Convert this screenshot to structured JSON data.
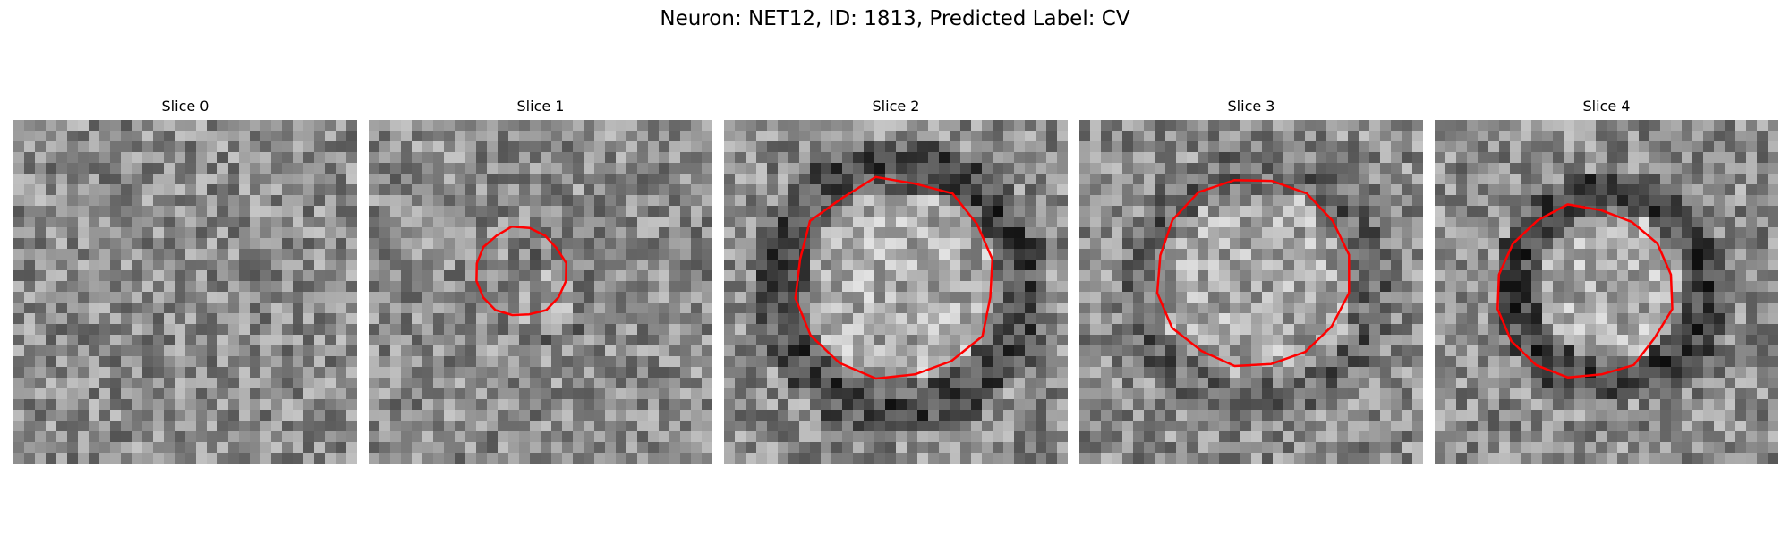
{
  "figure": {
    "title": "Neuron: NET12, ID: 1813, Predicted Label: CV",
    "contour_color": "#ff0000"
  },
  "panels": [
    {
      "title": "Slice 0",
      "has_contour": false
    },
    {
      "title": "Slice 1",
      "has_contour": true
    },
    {
      "title": "Slice 2",
      "has_contour": true
    },
    {
      "title": "Slice 3",
      "has_contour": true
    },
    {
      "title": "Slice 4",
      "has_contour": true
    }
  ]
}
